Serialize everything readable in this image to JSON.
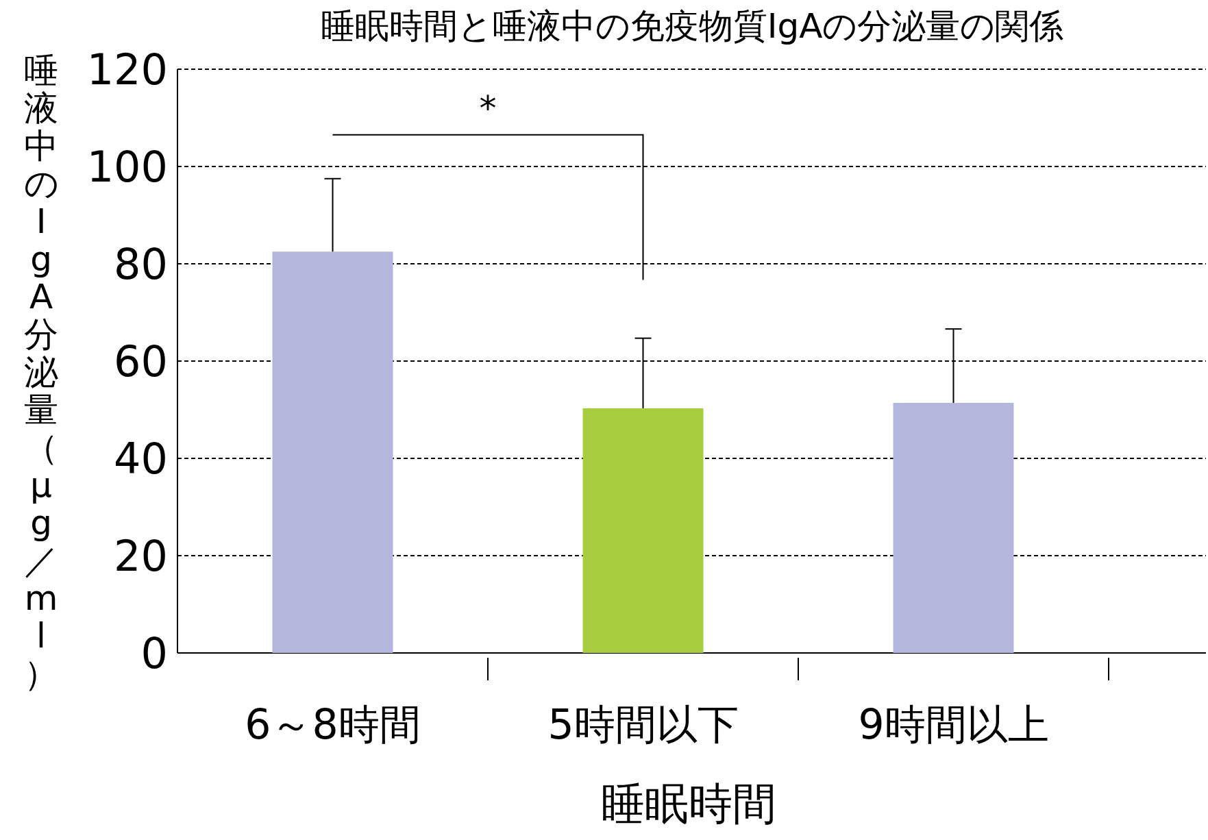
{
  "chart_data": {
    "type": "bar",
    "title": "睡眠時間と唾液中の免疫物質IgAの分泌量の関係",
    "xlabel": "睡眠時間",
    "ylabel": "唾液中のIgA分泌量（μg／ml）",
    "categories": [
      "6～8時間",
      "5時間以下",
      "9時間以上"
    ],
    "values": [
      82.5,
      50.3,
      51.4
    ],
    "colors": [
      "#b3b7dd",
      "#a7cd3f",
      "#b3b7dd"
    ],
    "errors": [
      [
        82.5,
        97.5
      ],
      [
        50.3,
        64.7
      ],
      [
        51.4,
        66.6
      ]
    ],
    "ylim": [
      0,
      120
    ],
    "yticks": [
      0,
      20,
      40,
      60,
      80,
      100,
      120
    ],
    "grid": "y",
    "annotations": [
      "*"
    ]
  }
}
